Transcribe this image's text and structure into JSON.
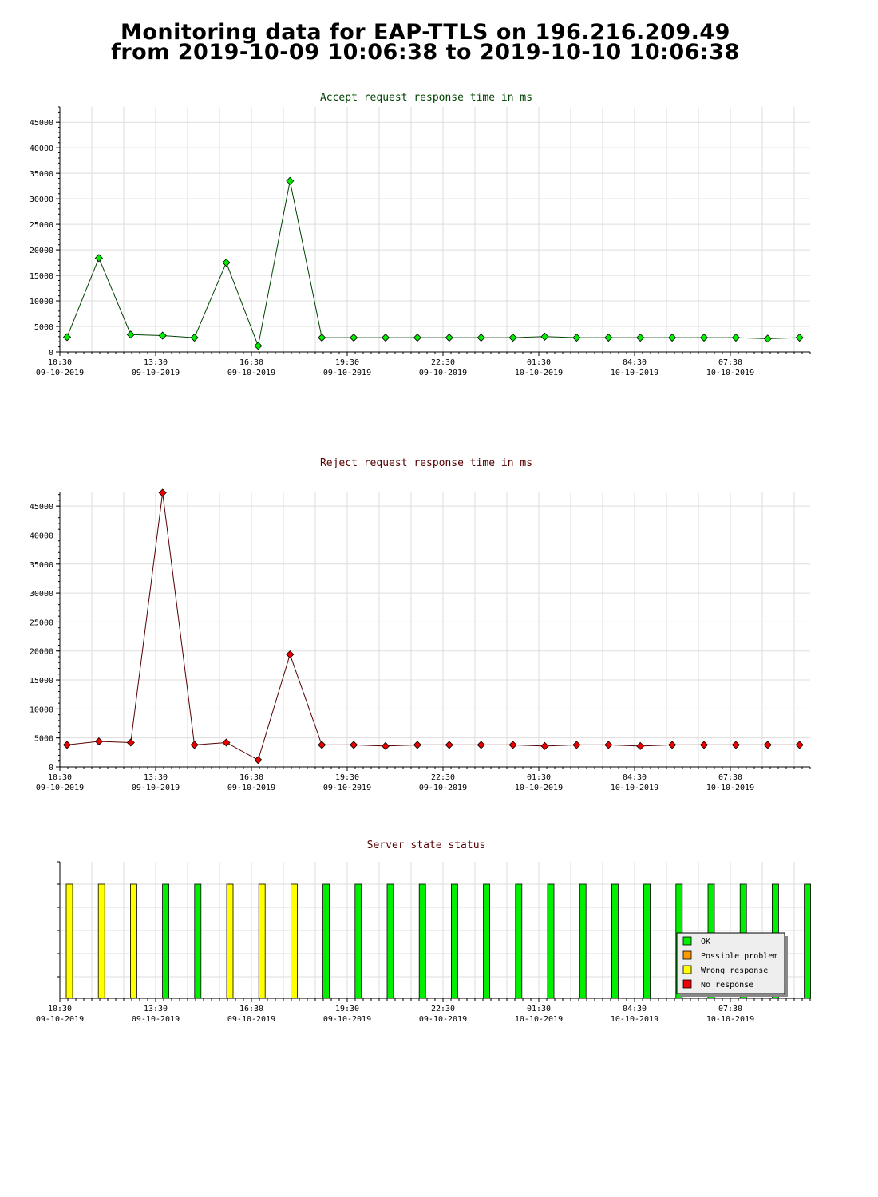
{
  "title": {
    "line1": "Monitoring data for EAP-TTLS on 196.216.209.49",
    "line2": "from 2019-10-09 10:06:38 to 2019-10-10 10:06:38"
  },
  "x_ticks": [
    {
      "time": "10:30",
      "date": "09-10-2019"
    },
    {
      "time": "13:30",
      "date": "09-10-2019"
    },
    {
      "time": "16:30",
      "date": "09-10-2019"
    },
    {
      "time": "19:30",
      "date": "09-10-2019"
    },
    {
      "time": "22:30",
      "date": "09-10-2019"
    },
    {
      "time": "01:30",
      "date": "10-10-2019"
    },
    {
      "time": "04:30",
      "date": "10-10-2019"
    },
    {
      "time": "07:30",
      "date": "10-10-2019"
    }
  ],
  "x_ticks_state": [
    {
      "time": "10:30",
      "date": "09-10-2019"
    },
    {
      "time": "13:30",
      "date": "09-10-2019"
    },
    {
      "time": "16:30",
      "date": "09-10-2019"
    },
    {
      "time": "19:30",
      "date": "09-10-2019"
    },
    {
      "time": "22:30",
      "date": "09-10-2019"
    },
    {
      "time": "01:30",
      "date": "10-10-2019"
    },
    {
      "time": "04:30",
      "date": "10-10-2019"
    },
    {
      "time": "07:30",
      "date": "10-10-2019"
    }
  ],
  "colors": {
    "accept_marker": "#00ee00",
    "accept_line": "#004400",
    "accept_title": "#004400",
    "reject_marker": "#ee0000",
    "reject_line": "#550000",
    "reject_title": "#550000",
    "state_title": "#550000",
    "grid": "#dddddd"
  },
  "chart_data": [
    {
      "type": "line",
      "title": "Accept request response time in ms",
      "xlabel": "",
      "ylabel": "",
      "x_range": [
        "2019-10-09 10:30",
        "2019-10-10 09:30"
      ],
      "ylim": [
        0,
        48000
      ],
      "yticks": [
        0,
        5000,
        10000,
        15000,
        20000,
        25000,
        30000,
        35000,
        40000,
        45000
      ],
      "grid": true,
      "x": [
        "10:30",
        "11:30",
        "12:30",
        "13:30",
        "14:30",
        "15:30",
        "16:30",
        "17:30",
        "18:30",
        "19:30",
        "20:30",
        "21:30",
        "22:30",
        "23:30",
        "00:30",
        "01:30",
        "02:30",
        "03:30",
        "04:30",
        "05:30",
        "06:30",
        "07:30",
        "08:30",
        "09:30"
      ],
      "values": [
        2900,
        18400,
        3400,
        3200,
        2800,
        17500,
        1200,
        33500,
        2800,
        2800,
        2800,
        2800,
        2800,
        2800,
        2800,
        3000,
        2800,
        2800,
        2800,
        2800,
        2800,
        2800,
        2600,
        2800
      ]
    },
    {
      "type": "line",
      "title": "Reject request response time in ms",
      "xlabel": "",
      "ylabel": "",
      "x_range": [
        "2019-10-09 10:30",
        "2019-10-10 09:30"
      ],
      "ylim": [
        0,
        47500
      ],
      "yticks": [
        0,
        5000,
        10000,
        15000,
        20000,
        25000,
        30000,
        35000,
        40000,
        45000
      ],
      "grid": true,
      "x": [
        "10:30",
        "11:30",
        "12:30",
        "13:30",
        "14:30",
        "15:30",
        "16:30",
        "17:30",
        "18:30",
        "19:30",
        "20:30",
        "21:30",
        "22:30",
        "23:30",
        "00:30",
        "01:30",
        "02:30",
        "03:30",
        "04:30",
        "05:30",
        "06:30",
        "07:30",
        "08:30",
        "09:30"
      ],
      "values": [
        3800,
        4400,
        4200,
        47300,
        3800,
        4200,
        1200,
        19400,
        3800,
        3800,
        3600,
        3800,
        3800,
        3800,
        3800,
        3600,
        3800,
        3800,
        3600,
        3800,
        3800,
        3800,
        3800,
        3800
      ]
    },
    {
      "type": "bar",
      "title": "Server state status",
      "xlabel": "",
      "ylabel": "",
      "x_range": [
        "2019-10-09 10:30",
        "2019-10-10 09:30"
      ],
      "grid": true,
      "legend_position": "bottom-right",
      "legend": [
        {
          "name": "OK",
          "color": "#00ee00"
        },
        {
          "name": "Possible problem",
          "color": "#ff9900"
        },
        {
          "name": "Wrong response",
          "color": "#ffff00"
        },
        {
          "name": "No response",
          "color": "#ee0000"
        }
      ],
      "x": [
        "10:30",
        "11:30",
        "12:30",
        "13:30",
        "14:30",
        "15:30",
        "16:30",
        "17:30",
        "18:30",
        "19:30",
        "20:30",
        "21:30",
        "22:30",
        "23:30",
        "00:30",
        "01:30",
        "02:30",
        "03:30",
        "04:30",
        "05:30",
        "06:30",
        "07:30",
        "08:30",
        "09:30"
      ],
      "states": [
        "Wrong response",
        "Wrong response",
        "Wrong response",
        "OK",
        "OK",
        "Wrong response",
        "Wrong response",
        "Wrong response",
        "OK",
        "OK",
        "OK",
        "OK",
        "OK",
        "OK",
        "OK",
        "OK",
        "OK",
        "OK",
        "OK",
        "OK",
        "OK",
        "OK",
        "OK",
        "OK"
      ]
    }
  ]
}
